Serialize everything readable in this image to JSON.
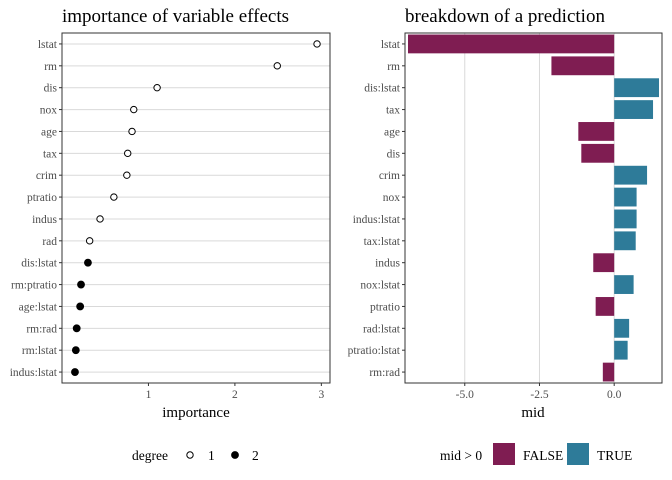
{
  "chart_data": [
    {
      "type": "scatter",
      "title": "importance of variable effects",
      "xlabel": "importance",
      "ylabel": "",
      "xlim": [
        0,
        3.1
      ],
      "xticks": [
        1,
        2,
        3
      ],
      "grid": true,
      "legend": {
        "title": "degree",
        "placement": "bottom",
        "entries": [
          {
            "label": "1",
            "marker": "open-circle"
          },
          {
            "label": "2",
            "marker": "filled-circle"
          }
        ]
      },
      "categories": [
        "lstat",
        "rm",
        "dis",
        "nox",
        "age",
        "tax",
        "crim",
        "ptratio",
        "indus",
        "rad",
        "dis:lstat",
        "rm:ptratio",
        "age:lstat",
        "rm:rad",
        "rm:lstat",
        "indus:lstat"
      ],
      "values": [
        2.95,
        2.49,
        1.1,
        0.83,
        0.81,
        0.76,
        0.75,
        0.6,
        0.44,
        0.32,
        0.3,
        0.22,
        0.21,
        0.17,
        0.16,
        0.15
      ],
      "degree": [
        1,
        1,
        1,
        1,
        1,
        1,
        1,
        1,
        1,
        1,
        2,
        2,
        2,
        2,
        2,
        2
      ]
    },
    {
      "type": "bar",
      "orientation": "horizontal",
      "title": "breakdown of a prediction",
      "xlabel": "mid",
      "ylabel": "",
      "xlim": [
        -7.0,
        1.6
      ],
      "xticks": [
        -5.0,
        -2.5,
        0.0
      ],
      "xtick_labels": [
        "-5.0",
        "-2.5",
        "0.0"
      ],
      "grid": true,
      "legend": {
        "title": "mid > 0",
        "placement": "bottom",
        "entries": [
          {
            "label": "FALSE",
            "color": "#7f1d52"
          },
          {
            "label": "TRUE",
            "color": "#2e7b99"
          }
        ]
      },
      "categories": [
        "lstat",
        "rm",
        "dis:lstat",
        "tax",
        "age",
        "dis",
        "crim",
        "nox",
        "indus:lstat",
        "tax:lstat",
        "indus",
        "nox:lstat",
        "ptratio",
        "rad:lstat",
        "ptratio:lstat",
        "rm:rad"
      ],
      "values": [
        -6.9,
        -2.1,
        1.5,
        1.3,
        -1.2,
        -1.1,
        1.1,
        0.75,
        0.75,
        0.72,
        -0.7,
        0.65,
        -0.62,
        0.5,
        0.45,
        -0.38
      ]
    }
  ]
}
